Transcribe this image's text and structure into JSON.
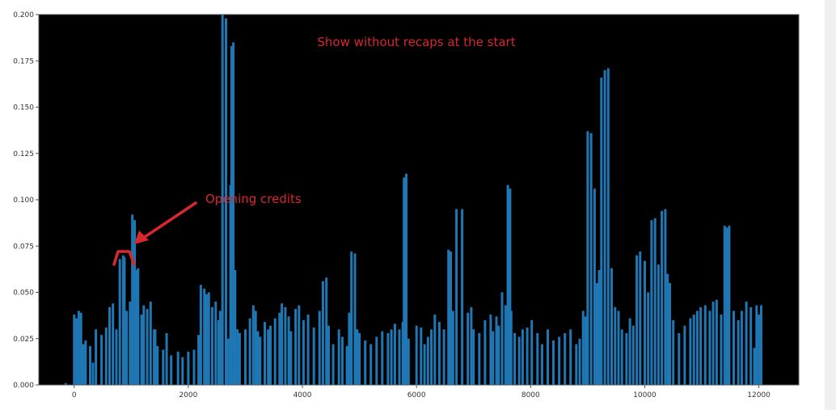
{
  "chart_data": {
    "type": "bar",
    "title": "",
    "xlabel": "",
    "ylabel": "",
    "xlim": [
      -620,
      12700
    ],
    "ylim": [
      0,
      0.2
    ],
    "x_ticks": [
      0,
      2000,
      4000,
      6000,
      8000,
      10000,
      12000
    ],
    "x_tick_labels": [
      "0",
      "2000",
      "4000",
      "6000",
      "8000",
      "10000",
      "12000"
    ],
    "y_ticks": [
      0,
      0.025,
      0.05,
      0.075,
      0.1,
      0.125,
      0.15,
      0.175,
      0.2
    ],
    "y_tick_labels": [
      "0.000",
      "0.025",
      "0.050",
      "0.075",
      "0.100",
      "0.125",
      "0.150",
      "0.175",
      "0.200"
    ],
    "grid": false,
    "bar_color": "#1f77b4",
    "background_color": "#000000",
    "annotation_color": "#d9272e",
    "x": [
      -150,
      0,
      40,
      80,
      100,
      120,
      160,
      200,
      280,
      330,
      380,
      480,
      560,
      620,
      680,
      740,
      800,
      860,
      880,
      920,
      980,
      1020,
      1060,
      1100,
      1120,
      1180,
      1220,
      1280,
      1340,
      1400,
      1420,
      1460,
      1560,
      1620,
      1700,
      1820,
      1900,
      2000,
      2100,
      2180,
      2220,
      2280,
      2320,
      2360,
      2420,
      2480,
      2530,
      2560,
      2600,
      2660,
      2700,
      2740,
      2760,
      2790,
      2820,
      2860,
      2900,
      3000,
      3080,
      3140,
      3180,
      3220,
      3260,
      3340,
      3400,
      3440,
      3520,
      3600,
      3640,
      3700,
      3760,
      3800,
      3880,
      3940,
      4020,
      4100,
      4200,
      4300,
      4360,
      4420,
      4460,
      4540,
      4640,
      4700,
      4780,
      4820,
      4860,
      4920,
      4960,
      5000,
      5100,
      5200,
      5300,
      5400,
      5500,
      5560,
      5620,
      5700,
      5760,
      5780,
      5820,
      5860,
      6000,
      6080,
      6140,
      6200,
      6260,
      6320,
      6400,
      6480,
      6560,
      6600,
      6640,
      6700,
      6800,
      6900,
      6960,
      7000,
      7100,
      7200,
      7300,
      7340,
      7400,
      7440,
      7500,
      7560,
      7600,
      7640,
      7660,
      7720,
      7800,
      7860,
      7940,
      8020,
      8120,
      8200,
      8300,
      8400,
      8500,
      8600,
      8700,
      8800,
      8860,
      8920,
      8960,
      9000,
      9060,
      9120,
      9160,
      9200,
      9240,
      9300,
      9360,
      9420,
      9480,
      9540,
      9600,
      9680,
      9740,
      9800,
      9860,
      9920,
      10000,
      10060,
      10120,
      10180,
      10240,
      10300,
      10360,
      10400,
      10440,
      10500,
      10600,
      10700,
      10800,
      10860,
      10920,
      10980,
      11060,
      11140,
      11200,
      11260,
      11340,
      11400,
      11440,
      11480,
      11560,
      11640,
      11700,
      11780,
      11860,
      11920,
      11960,
      12000,
      12040
    ],
    "values": [
      0.001,
      0.038,
      0.036,
      0.04,
      0.018,
      0.039,
      0.022,
      0.024,
      0.021,
      0.012,
      0.03,
      0.027,
      0.031,
      0.042,
      0.044,
      0.03,
      0.068,
      0.07,
      0.069,
      0.04,
      0.045,
      0.092,
      0.089,
      0.062,
      0.063,
      0.038,
      0.043,
      0.041,
      0.045,
      0.03,
      0.03,
      0.021,
      0.019,
      0.028,
      0.016,
      0.018,
      0.015,
      0.018,
      0.019,
      0.027,
      0.054,
      0.052,
      0.049,
      0.05,
      0.042,
      0.045,
      0.035,
      0.04,
      0.2,
      0.198,
      0.025,
      0.108,
      0.183,
      0.185,
      0.062,
      0.03,
      0.028,
      0.03,
      0.036,
      0.043,
      0.04,
      0.029,
      0.026,
      0.034,
      0.03,
      0.032,
      0.036,
      0.039,
      0.044,
      0.042,
      0.037,
      0.029,
      0.041,
      0.043,
      0.035,
      0.038,
      0.031,
      0.04,
      0.056,
      0.058,
      0.032,
      0.022,
      0.03,
      0.026,
      0.021,
      0.039,
      0.072,
      0.071,
      0.03,
      0.028,
      0.024,
      0.022,
      0.026,
      0.029,
      0.028,
      0.03,
      0.033,
      0.03,
      0.034,
      0.112,
      0.114,
      0.025,
      0.032,
      0.031,
      0.022,
      0.026,
      0.03,
      0.038,
      0.034,
      0.03,
      0.073,
      0.072,
      0.04,
      0.095,
      0.095,
      0.039,
      0.042,
      0.03,
      0.028,
      0.035,
      0.038,
      0.029,
      0.037,
      0.032,
      0.05,
      0.043,
      0.108,
      0.106,
      0.04,
      0.028,
      0.026,
      0.03,
      0.031,
      0.035,
      0.028,
      0.022,
      0.03,
      0.024,
      0.026,
      0.028,
      0.03,
      0.022,
      0.025,
      0.04,
      0.037,
      0.137,
      0.136,
      0.106,
      0.055,
      0.062,
      0.166,
      0.17,
      0.171,
      0.063,
      0.042,
      0.04,
      0.03,
      0.028,
      0.036,
      0.032,
      0.07,
      0.072,
      0.067,
      0.05,
      0.089,
      0.09,
      0.065,
      0.094,
      0.095,
      0.06,
      0.055,
      0.035,
      0.028,
      0.032,
      0.036,
      0.038,
      0.04,
      0.042,
      0.043,
      0.04,
      0.045,
      0.046,
      0.038,
      0.086,
      0.085,
      0.086,
      0.04,
      0.035,
      0.04,
      0.045,
      0.042,
      0.02,
      0.043,
      0.038,
      0.043
    ]
  },
  "annotations": {
    "title_text": "Show without recaps at the start",
    "credits_text": "Opening credits"
  }
}
